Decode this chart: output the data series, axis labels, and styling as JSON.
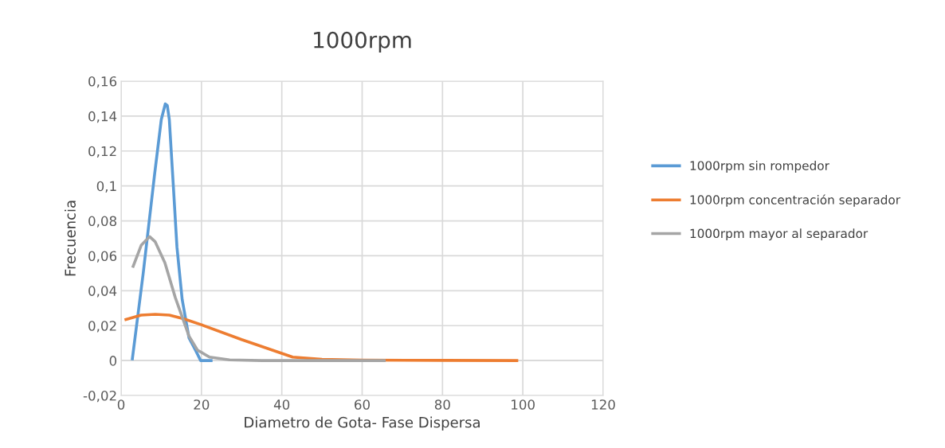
{
  "chart_data": {
    "type": "line",
    "title": "1000rpm",
    "xlabel": "Diametro de Gota- Fase Dispersa",
    "ylabel": "Frecuencia",
    "xlim": [
      0,
      120
    ],
    "xticks": [
      0,
      20,
      40,
      60,
      80,
      100,
      120
    ],
    "ylim": [
      -0.02,
      0.16
    ],
    "yticks": [
      {
        "value": -0.02,
        "label": "-0,02"
      },
      {
        "value": 0,
        "label": "0"
      },
      {
        "value": 0.02,
        "label": "0,02"
      },
      {
        "value": 0.04,
        "label": "0,04"
      },
      {
        "value": 0.06,
        "label": "0,06"
      },
      {
        "value": 0.08,
        "label": "0,08"
      },
      {
        "value": 0.1,
        "label": "0,1"
      },
      {
        "value": 0.12,
        "label": "0,12"
      },
      {
        "value": 0.14,
        "label": "0,14"
      },
      {
        "value": 0.16,
        "label": "0,16"
      }
    ],
    "grid": true,
    "legend": "right",
    "marker": "none",
    "series": [
      {
        "name": "1000rpm sin rompedor",
        "color": "#5b9bd5",
        "x": [
          2.8,
          5.5,
          8.3,
          10,
          11,
          11.5,
          12,
          13,
          13.9,
          15.2,
          16.9,
          18.5,
          19.8,
          22.4
        ],
        "values": [
          0.001,
          0.05,
          0.106,
          0.138,
          0.147,
          0.146,
          0.138,
          0.1,
          0.065,
          0.035,
          0.013,
          0.006,
          0,
          0
        ]
      },
      {
        "name": "1000rpm concentración separador",
        "color": "#ed7d31",
        "x": [
          1.2,
          5,
          8.5,
          12,
          15.5,
          20,
          30,
          42.7,
          50,
          60,
          80,
          98.5
        ],
        "values": [
          0.0235,
          0.026,
          0.0265,
          0.026,
          0.024,
          0.0205,
          0.012,
          0.002,
          0.0007,
          0.0003,
          0.0001,
          0
        ]
      },
      {
        "name": "1000rpm mayor al separador",
        "color": "#a5a5a5",
        "x": [
          3,
          5,
          7.1,
          8.5,
          10.9,
          13.5,
          16.9,
          19,
          22,
          27,
          35,
          50,
          65.5
        ],
        "values": [
          0.054,
          0.066,
          0.071,
          0.068,
          0.056,
          0.036,
          0.014,
          0.006,
          0.002,
          0.0004,
          0,
          0,
          0
        ]
      }
    ]
  }
}
